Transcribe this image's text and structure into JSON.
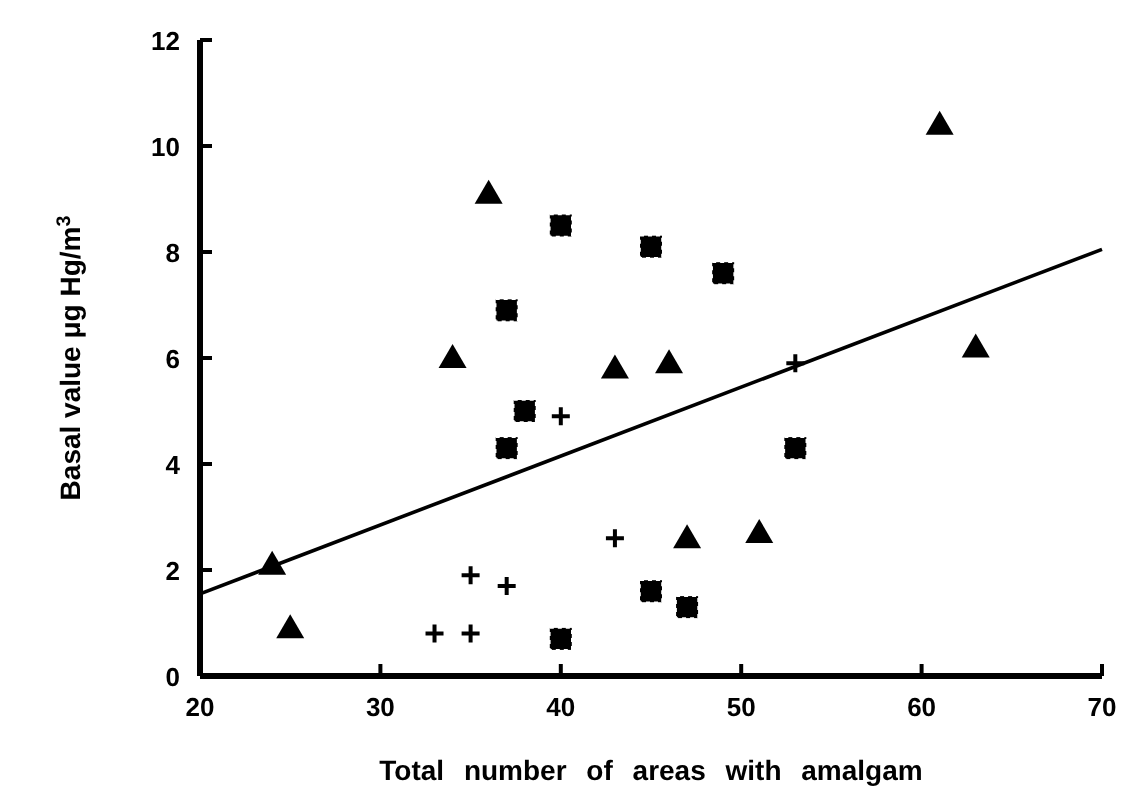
{
  "chart_data": {
    "type": "scatter",
    "xlabel": "Total number of areas with amalgam",
    "ylabel": "Basal value  μg Hg/m$^{3}$",
    "xlim": [
      20,
      70
    ],
    "xticks": [
      20,
      30,
      40,
      50,
      60,
      70
    ],
    "ylim": [
      0,
      12
    ],
    "yticks": [
      0,
      2,
      4,
      6,
      8,
      10,
      12
    ],
    "grid": false,
    "series": [
      {
        "color": "#000000",
        "marker": "triangle",
        "x": [
          24,
          25,
          36,
          34,
          43,
          46,
          47,
          51,
          61,
          63
        ],
        "values": [
          2.1,
          0.9,
          9.1,
          6.0,
          5.8,
          5.9,
          2.6,
          2.7,
          10.4,
          6.2
        ]
      },
      {
        "color": "#000000",
        "marker": "square",
        "x": [
          37,
          38,
          37,
          40,
          45,
          49,
          53,
          45,
          47,
          40
        ],
        "values": [
          6.9,
          5.0,
          4.3,
          8.5,
          8.1,
          7.6,
          4.3,
          1.6,
          1.3,
          0.7
        ]
      },
      {
        "color": "#000000",
        "marker": "cross",
        "x": [
          33,
          35,
          35,
          37,
          40,
          43,
          53
        ],
        "values": [
          0.8,
          0.8,
          1.9,
          1.7,
          4.9,
          2.6,
          5.9
        ]
      },
      {
        "type": "line",
        "color": "#000000",
        "marker": "none",
        "line_style": "solid",
        "x": [
          20,
          70
        ],
        "values": [
          1.55,
          8.05
        ]
      }
    ]
  }
}
